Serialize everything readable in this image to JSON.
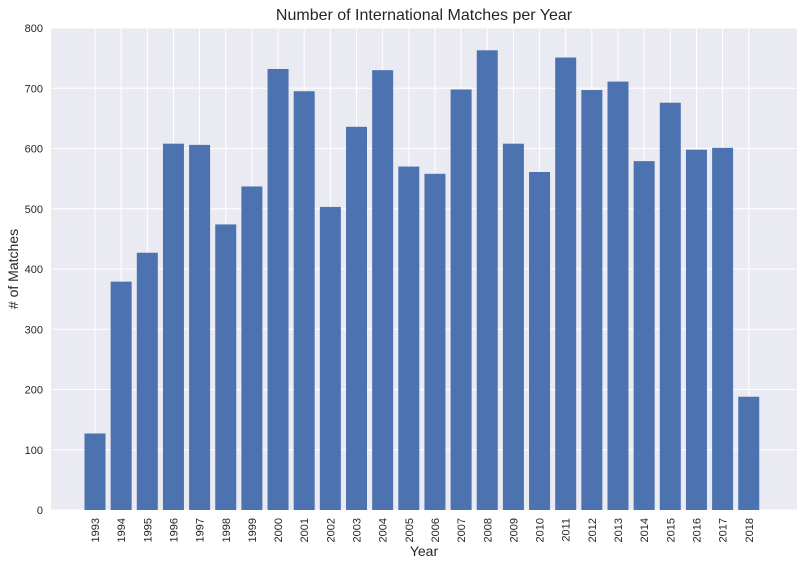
{
  "chart_data": {
    "type": "bar",
    "title": "Number of International Matches per Year",
    "xlabel": "Year",
    "ylabel": "# of Matches",
    "categories": [
      "1993",
      "1994",
      "1995",
      "1996",
      "1997",
      "1998",
      "1999",
      "2000",
      "2001",
      "2002",
      "2003",
      "2004",
      "2005",
      "2006",
      "2007",
      "2008",
      "2009",
      "2010",
      "2011",
      "2012",
      "2013",
      "2014",
      "2015",
      "2016",
      "2017",
      "2018"
    ],
    "values": [
      127,
      379,
      427,
      608,
      606,
      474,
      537,
      732,
      695,
      503,
      636,
      730,
      570,
      558,
      698,
      763,
      608,
      561,
      751,
      697,
      711,
      579,
      676,
      598,
      601,
      188
    ],
    "ylim": [
      0,
      800
    ],
    "yticks": [
      0,
      100,
      200,
      300,
      400,
      500,
      600,
      700,
      800
    ],
    "grid": true,
    "colors": {
      "bar": "#4c72b0",
      "plot_background": "#eaeaf2",
      "grid": "#ffffff",
      "text": "#262626"
    }
  }
}
